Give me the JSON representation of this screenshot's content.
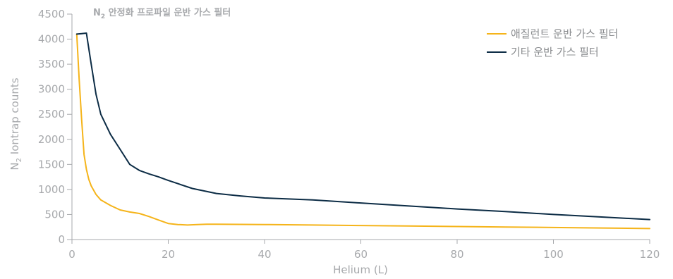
{
  "chart_data": {
    "type": "line",
    "title": {
      "main": "N",
      "sub": "2",
      "rest": " 안정화 프로파일 운반 가스 필터"
    },
    "xlabel": "Helium (L)",
    "ylabel": {
      "main": "N",
      "sub": "2",
      "rest": " Iontrap counts"
    },
    "xlim": [
      0,
      120
    ],
    "ylim": [
      0,
      4500
    ],
    "xticks": [
      0,
      20,
      40,
      60,
      80,
      100,
      120
    ],
    "yticks": [
      0,
      500,
      1000,
      1500,
      2000,
      2500,
      3000,
      3500,
      4000,
      4500
    ],
    "grid": false,
    "legend_position": "top-right",
    "series": [
      {
        "name": "애질런트 운반 가스 필터",
        "color": "#f5b41a",
        "x": [
          1,
          1.5,
          2,
          2.5,
          3,
          3.5,
          4,
          5,
          6,
          8,
          10,
          12,
          14,
          16,
          18,
          20,
          22,
          24,
          26,
          28,
          30,
          40,
          50,
          60,
          70,
          80,
          90,
          100,
          110,
          120
        ],
        "y": [
          4100,
          3200,
          2400,
          1700,
          1400,
          1200,
          1070,
          900,
          790,
          680,
          590,
          550,
          520,
          460,
          390,
          320,
          300,
          290,
          300,
          305,
          305,
          300,
          290,
          280,
          270,
          260,
          250,
          240,
          230,
          220
        ]
      },
      {
        "name": "기타 운반 가스 필터",
        "color": "#0c2c45",
        "x": [
          1,
          2,
          3,
          4,
          5,
          6,
          8,
          10,
          12,
          14,
          16,
          18,
          20,
          25,
          30,
          35,
          40,
          50,
          60,
          70,
          80,
          90,
          100,
          110,
          120
        ],
        "y": [
          4100,
          4110,
          4120,
          3500,
          2900,
          2500,
          2100,
          1800,
          1500,
          1380,
          1310,
          1250,
          1180,
          1020,
          920,
          870,
          830,
          790,
          730,
          670,
          610,
          560,
          500,
          450,
          400
        ]
      }
    ]
  },
  "style": {
    "axis_color": "#a7a9ac",
    "text_color": "#a7a9ac"
  }
}
